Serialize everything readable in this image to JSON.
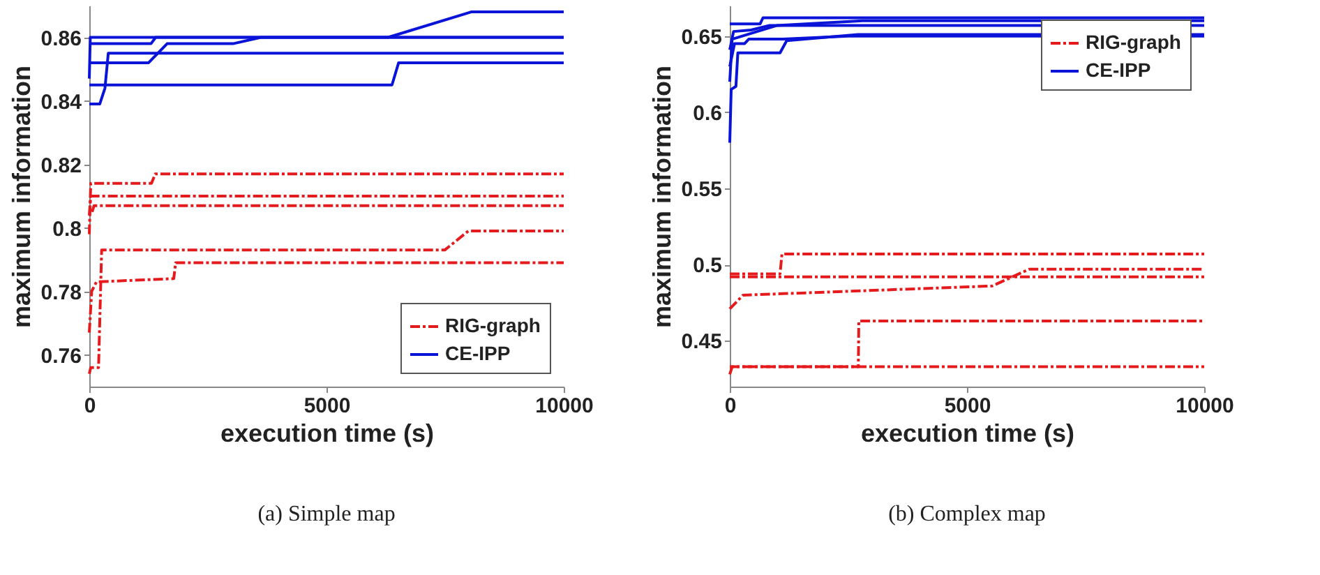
{
  "chart_data": [
    {
      "type": "line",
      "title": "(a) Simple map",
      "xlabel": "execution time (s)",
      "ylabel": "maximum information",
      "xlim": [
        0,
        10000
      ],
      "xticks": [
        0,
        5000,
        10000
      ],
      "ylim": [
        0.75,
        0.87
      ],
      "yticks": [
        0.76,
        0.78,
        0.8,
        0.82,
        0.84,
        0.86
      ],
      "grid": false,
      "legend": "bottom right",
      "series": [
        {
          "name": "RIG-graph",
          "color": "#e41a1c",
          "line_style": "dashed",
          "x": [
            0,
            30,
            1310,
            1390,
            10000
          ],
          "values": [
            0.798,
            0.814,
            0.814,
            0.817,
            0.817
          ]
        },
        {
          "color": "#e41a1c",
          "line_style": "dashed",
          "x": [
            0,
            30,
            10000
          ],
          "values": [
            0.804,
            0.81,
            0.81
          ]
        },
        {
          "color": "#e41a1c",
          "line_style": "dashed",
          "x": [
            60,
            100,
            10000
          ],
          "values": [
            0.805,
            0.807,
            0.807
          ]
        },
        {
          "color": "#e41a1c",
          "line_style": "dashed",
          "x": [
            0,
            30,
            195,
            260,
            7490,
            7990,
            10000
          ],
          "values": [
            0.754,
            0.756,
            0.756,
            0.793,
            0.793,
            0.799,
            0.799
          ]
        },
        {
          "color": "#e41a1c",
          "line_style": "dashed",
          "x": [
            0,
            50,
            150,
            1780,
            1820,
            10000
          ],
          "values": [
            0.767,
            0.78,
            0.783,
            0.784,
            0.789,
            0.789
          ]
        },
        {
          "name": "CE-IPP",
          "color": "#0a14d8",
          "line_style": "solid",
          "x": [
            0,
            20,
            6300,
            8050,
            10000
          ],
          "values": [
            0.847,
            0.86,
            0.86,
            0.868,
            0.868
          ]
        },
        {
          "color": "#0a14d8",
          "line_style": "solid",
          "x": [
            0,
            1300,
            1400,
            10000
          ],
          "values": [
            0.858,
            0.858,
            0.86,
            0.86
          ]
        },
        {
          "color": "#0a14d8",
          "line_style": "solid",
          "x": [
            0,
            1250,
            1640,
            3030,
            3620,
            10000
          ],
          "values": [
            0.852,
            0.852,
            0.858,
            0.858,
            0.86,
            0.86
          ]
        },
        {
          "color": "#0a14d8",
          "line_style": "solid",
          "x": [
            0,
            220,
            330,
            400,
            10000
          ],
          "values": [
            0.839,
            0.839,
            0.844,
            0.855,
            0.855
          ]
        },
        {
          "color": "#0a14d8",
          "line_style": "solid",
          "x": [
            0,
            6380,
            6520,
            10000
          ],
          "values": [
            0.845,
            0.845,
            0.852,
            0.852
          ]
        }
      ]
    },
    {
      "type": "line",
      "title": "(b) Complex map",
      "xlabel": "execution time (s)",
      "ylabel": "maximum information",
      "xlim": [
        0,
        10000
      ],
      "xticks": [
        0,
        5000,
        10000
      ],
      "ylim": [
        0.42,
        0.67
      ],
      "yticks": [
        0.45,
        0.5,
        0.55,
        0.6,
        0.65
      ],
      "grid": false,
      "legend": "top right",
      "series": [
        {
          "name": "RIG-graph",
          "color": "#e41a1c",
          "line_style": "dashed",
          "x": [
            0,
            1060,
            1100,
            10000
          ],
          "values": [
            0.494,
            0.494,
            0.507,
            0.507
          ]
        },
        {
          "color": "#e41a1c",
          "line_style": "dashed",
          "x": [
            0,
            10000
          ],
          "values": [
            0.492,
            0.492
          ]
        },
        {
          "color": "#e41a1c",
          "line_style": "dashed",
          "x": [
            0,
            280,
            5530,
            6310,
            10000
          ],
          "values": [
            0.471,
            0.48,
            0.486,
            0.497,
            0.497
          ]
        },
        {
          "color": "#e41a1c",
          "line_style": "dashed",
          "x": [
            0,
            50,
            2710,
            2720,
            10000
          ],
          "values": [
            0.428,
            0.433,
            0.433,
            0.463,
            0.463
          ]
        },
        {
          "color": "#e41a1c",
          "line_style": "dashed",
          "x": [
            0,
            10000
          ],
          "values": [
            0.433,
            0.433
          ]
        },
        {
          "name": "CE-IPP",
          "color": "#0a14d8",
          "line_style": "solid",
          "x": [
            0,
            30,
            130,
            170,
            1060,
            1200,
            2700,
            10000
          ],
          "values": [
            0.58,
            0.615,
            0.617,
            0.639,
            0.639,
            0.647,
            0.651,
            0.651
          ]
        },
        {
          "color": "#0a14d8",
          "line_style": "solid",
          "x": [
            0,
            80,
            450,
            840,
            10000
          ],
          "values": [
            0.641,
            0.653,
            0.654,
            0.657,
            0.657
          ]
        },
        {
          "color": "#0a14d8",
          "line_style": "solid",
          "x": [
            0,
            640,
            700,
            10000
          ],
          "values": [
            0.658,
            0.658,
            0.662,
            0.662
          ]
        },
        {
          "color": "#0a14d8",
          "line_style": "solid",
          "x": [
            0,
            100,
            310,
            400,
            1120,
            2500,
            10000
          ],
          "values": [
            0.63,
            0.645,
            0.645,
            0.648,
            0.648,
            0.65,
            0.65
          ]
        },
        {
          "color": "#0a14d8",
          "line_style": "solid",
          "x": [
            0,
            50,
            1000,
            2800,
            10000
          ],
          "values": [
            0.62,
            0.648,
            0.657,
            0.66,
            0.66
          ]
        }
      ]
    }
  ]
}
